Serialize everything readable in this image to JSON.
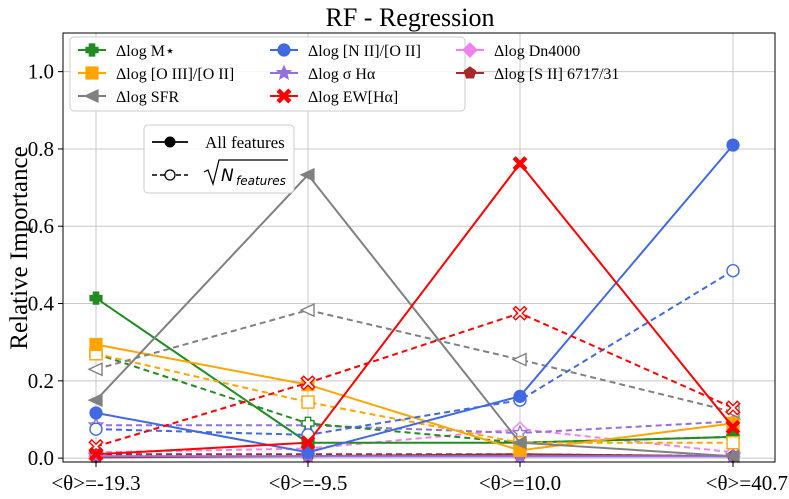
{
  "chart_data": {
    "type": "line",
    "title": "RF - Regression",
    "xlabel": "",
    "ylabel": "Relative Importance",
    "categories": [
      "<θ>=-19.3",
      "<θ>=-9.5",
      "<θ>=10.0",
      "<θ>=40.7"
    ],
    "ylim": [
      -0.01,
      1.1
    ],
    "yticks": [
      "0.0",
      "0.2",
      "0.4",
      "0.6",
      "0.8",
      "1.0"
    ],
    "grid": true,
    "legend_position": "top-left",
    "series": [
      {
        "name": "Δlog M⋆",
        "color": "#228B22",
        "marker": "plus",
        "all": [
          0.414,
          0.04,
          0.04,
          0.055
        ],
        "sqrt": [
          0.27,
          0.09,
          0.04,
          0.055
        ]
      },
      {
        "name": "Δlog [O III]/[O II]",
        "color": "#FFA500",
        "marker": "square",
        "all": [
          0.294,
          0.19,
          0.02,
          0.09
        ],
        "sqrt": [
          0.27,
          0.145,
          0.04,
          0.04
        ]
      },
      {
        "name": "Δlog SFR",
        "color": "#808080",
        "marker": "triangle-left",
        "all": [
          0.15,
          0.733,
          0.04,
          0.005
        ],
        "sqrt": [
          0.23,
          0.383,
          0.255,
          0.12
        ]
      },
      {
        "name": "Δlog [N II]/[O II]",
        "color": "#4169E1",
        "marker": "circle",
        "all": [
          0.117,
          0.015,
          0.16,
          0.81
        ],
        "sqrt": [
          0.075,
          0.06,
          0.15,
          0.485
        ]
      },
      {
        "name": "Δlog σ Hα",
        "color": "#9370DB",
        "marker": "star",
        "all": [
          0.005,
          0.005,
          0.005,
          0.005
        ],
        "sqrt": [
          0.085,
          0.085,
          0.065,
          0.095
        ]
      },
      {
        "name": "Δlog EW[Hα]",
        "color": "#FF0000",
        "marker": "x",
        "all": [
          0.01,
          0.04,
          0.762,
          0.08
        ],
        "sqrt": [
          0.03,
          0.195,
          0.375,
          0.13
        ]
      },
      {
        "name": "Δlog Dn4000",
        "color": "#EE82EE",
        "marker": "diamond",
        "all": [
          0.005,
          0.005,
          0.005,
          0.005
        ],
        "sqrt": [
          0.015,
          0.025,
          0.075,
          0.015
        ]
      },
      {
        "name": "Δlog [S II] 6717/31",
        "color": "#A52A2A",
        "marker": "pentagon",
        "all": [
          0.002,
          0.005,
          0.01,
          0.005
        ],
        "sqrt": [
          0.01,
          0.01,
          0.01,
          0.005
        ]
      }
    ],
    "style_legend": [
      {
        "label": "All features",
        "style": "solid-filled"
      },
      {
        "label": "√N_features",
        "style": "dashed-open"
      }
    ]
  }
}
